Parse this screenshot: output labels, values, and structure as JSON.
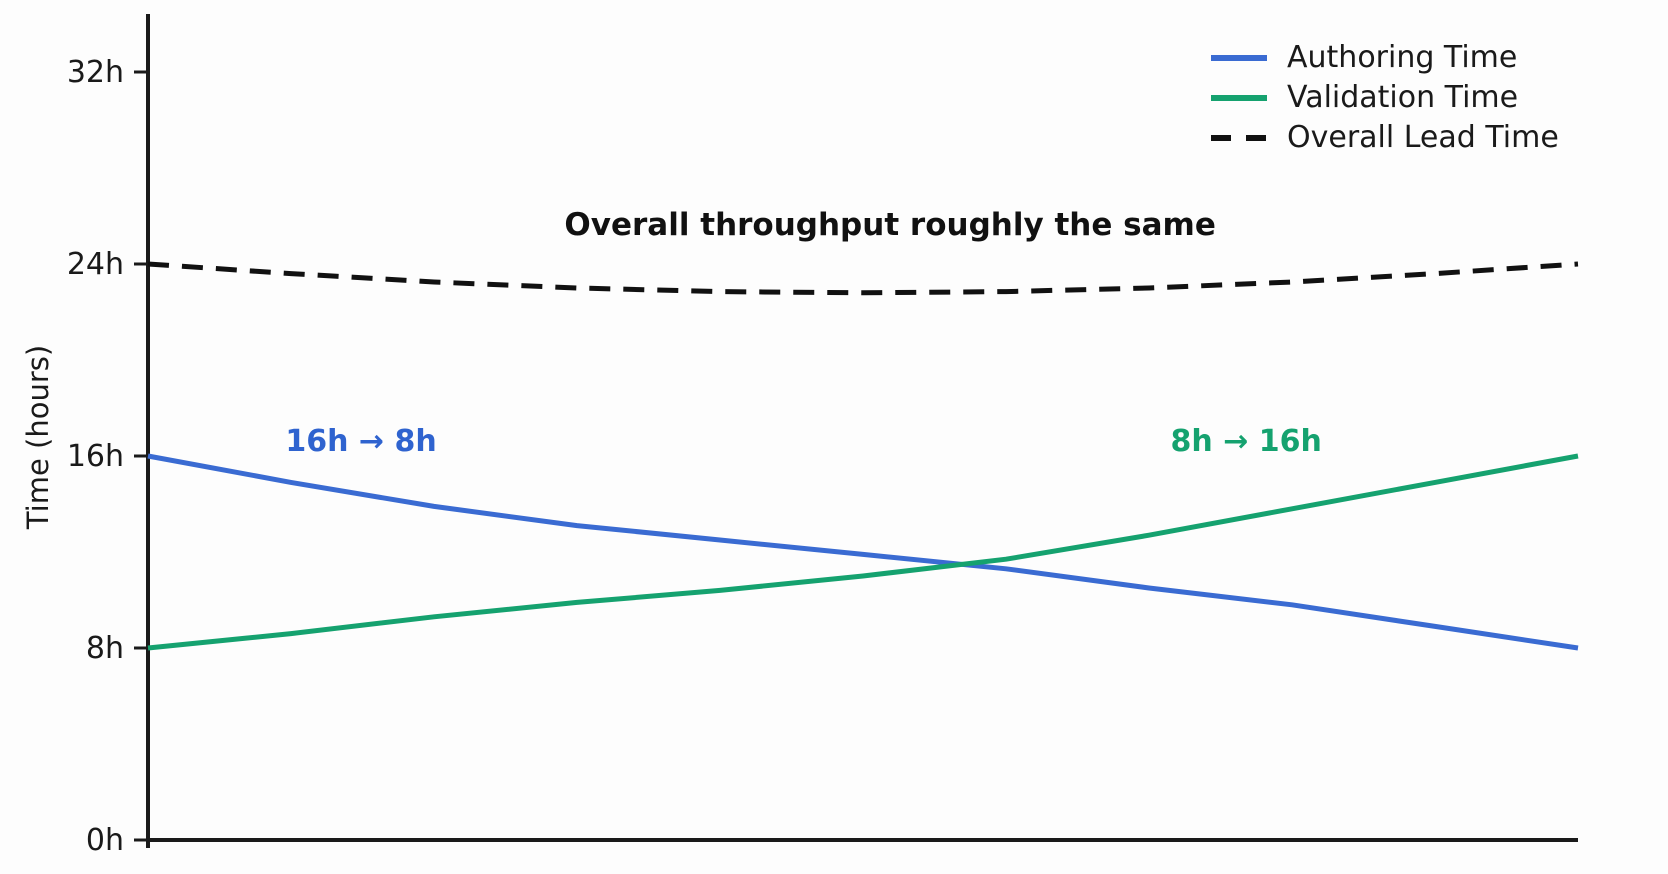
{
  "chart_data": {
    "type": "line",
    "title": "",
    "xlabel": "",
    "ylabel": "Time (hours)",
    "ylim": [
      0,
      34
    ],
    "x_axis_labels_visible": false,
    "grid": false,
    "legend_position": "upper right",
    "yticks": [
      {
        "label": "0h",
        "value": 0
      },
      {
        "label": "8h",
        "value": 8
      },
      {
        "label": "16h",
        "value": 16
      },
      {
        "label": "24h",
        "value": 24
      },
      {
        "label": "32h",
        "value": 32
      }
    ],
    "x": [
      0,
      0.1,
      0.2,
      0.3,
      0.4,
      0.5,
      0.6,
      0.7,
      0.8,
      0.9,
      1.0
    ],
    "series": [
      {
        "name": "Authoring Time",
        "color": "#3a6bd2",
        "style": "solid",
        "values": [
          16.0,
          14.9,
          13.9,
          13.1,
          12.5,
          11.9,
          11.3,
          10.5,
          9.8,
          8.9,
          8.0
        ]
      },
      {
        "name": "Validation Time",
        "color": "#15a26f",
        "style": "solid",
        "values": [
          8.0,
          8.6,
          9.3,
          9.9,
          10.4,
          11.0,
          11.7,
          12.7,
          13.8,
          14.9,
          16.0
        ]
      },
      {
        "name": "Overall Lead Time",
        "color": "#111111",
        "style": "dashed",
        "values": [
          24.0,
          23.6,
          23.25,
          23.0,
          22.85,
          22.8,
          22.85,
          23.0,
          23.25,
          23.6,
          24.0
        ]
      }
    ],
    "annotations": [
      {
        "text": "16h → 8h",
        "color": "#2f63cf",
        "x": 0.149,
        "value": 16.2
      },
      {
        "text": "8h → 16h",
        "color": "#15a26f",
        "x": 0.768,
        "value": 16.2
      },
      {
        "text": "Overall throughput roughly the same",
        "color": "#111111",
        "x": 0.519,
        "value": 25.2
      }
    ]
  }
}
